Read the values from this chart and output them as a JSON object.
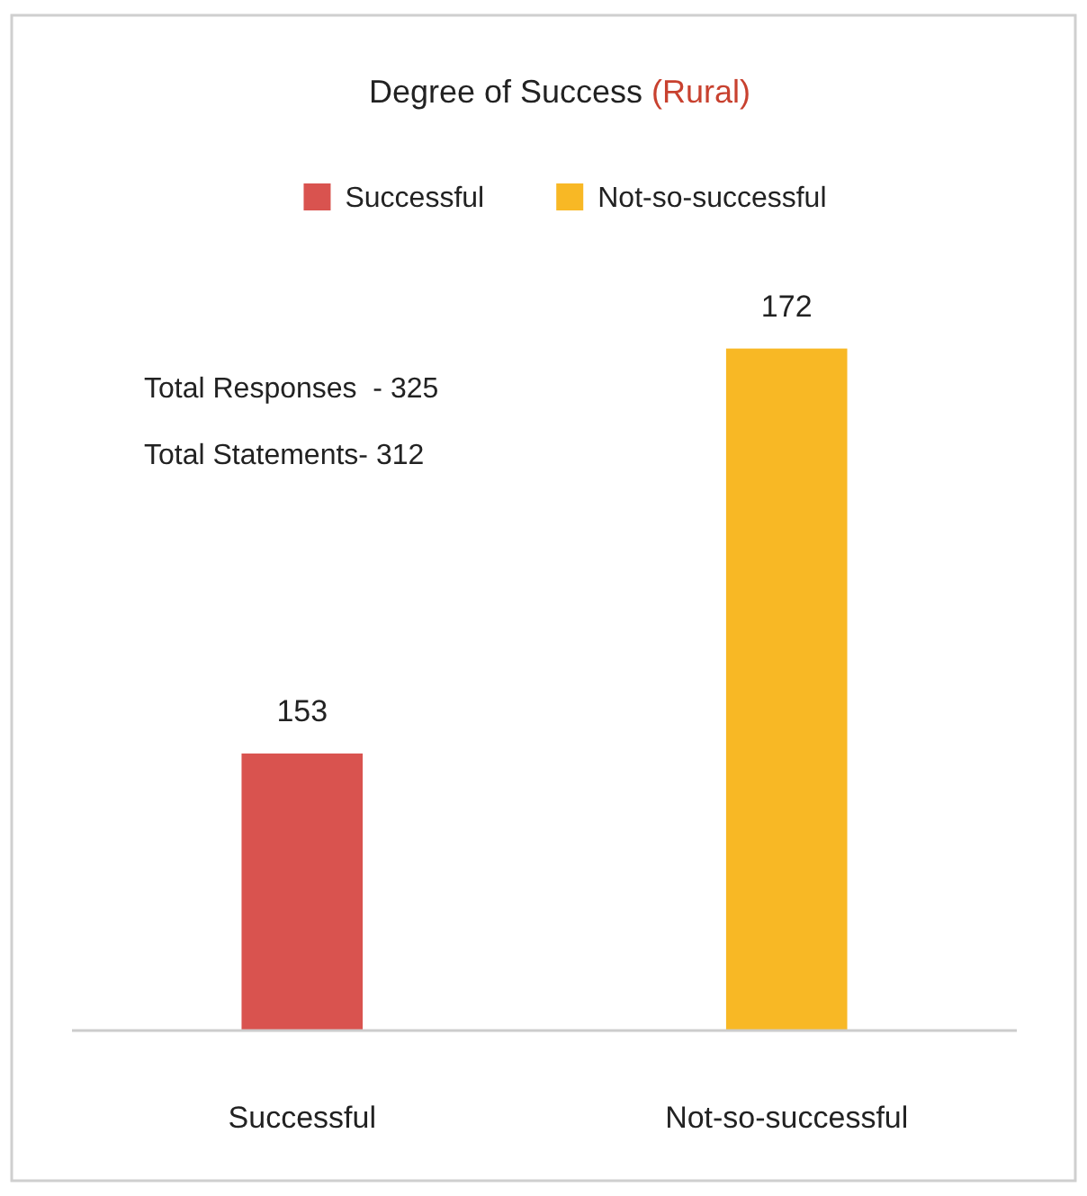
{
  "chart_data": {
    "type": "bar",
    "title": "Degree of Success (Rural)",
    "categories": [
      "Successful",
      "Not-so-successful"
    ],
    "series": [
      {
        "name": "Successful",
        "color": "#d9534f",
        "values": [
          153,
          null
        ]
      },
      {
        "name": "Not-so-successful",
        "color": "#f8b825",
        "values": [
          null,
          172
        ]
      }
    ],
    "ylim": [
      140,
      180
    ],
    "tick_labels": "x",
    "data_labels": true,
    "legend": "top",
    "annotations": [
      "Total Responses  - 325",
      "Total Statements- 312"
    ]
  }
}
